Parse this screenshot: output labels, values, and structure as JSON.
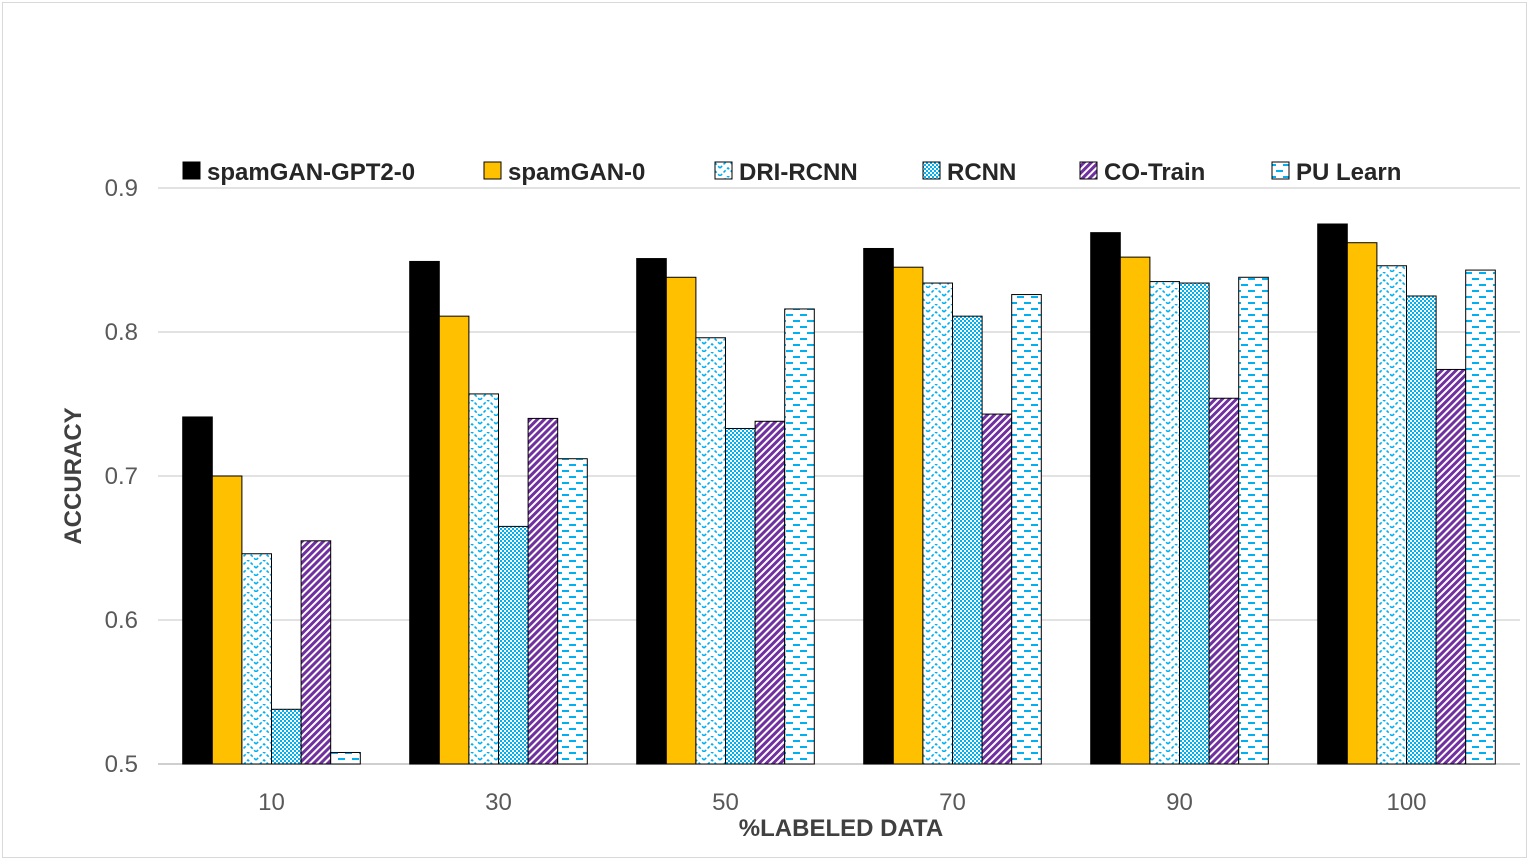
{
  "chart_data": {
    "type": "bar",
    "title": "",
    "xlabel": "%LABELED DATA",
    "ylabel": "ACCURACY",
    "ylim": [
      0.5,
      0.9
    ],
    "yticks": [
      "0.5",
      "0.6",
      "0.7",
      "0.8",
      "0.9"
    ],
    "grid": true,
    "legend_position": "top",
    "categories": [
      "10",
      "30",
      "50",
      "70",
      "90",
      "100"
    ],
    "series": [
      {
        "name": "spamGAN-GPT2-0",
        "values": [
          0.741,
          0.849,
          0.851,
          0.858,
          0.869,
          0.875
        ],
        "color": "#000000",
        "pattern": "solid"
      },
      {
        "name": "spamGAN-0",
        "values": [
          0.7,
          0.811,
          0.838,
          0.845,
          0.852,
          0.862
        ],
        "color": "#ffc000",
        "pattern": "solid"
      },
      {
        "name": "DRI-RCNN",
        "values": [
          0.646,
          0.757,
          0.796,
          0.834,
          0.835,
          0.846
        ],
        "color": "#00b0f0",
        "pattern": "zigzag"
      },
      {
        "name": "RCNN",
        "values": [
          0.538,
          0.665,
          0.733,
          0.811,
          0.834,
          0.825
        ],
        "color": "#00b0f0",
        "pattern": "dense"
      },
      {
        "name": "CO-Train",
        "values": [
          0.655,
          0.74,
          0.738,
          0.743,
          0.754,
          0.774
        ],
        "color": "#7030a0",
        "pattern": "diagonal"
      },
      {
        "name": "PU Learn",
        "values": [
          0.508,
          0.712,
          0.816,
          0.826,
          0.838,
          0.843
        ],
        "color": "#00b0f0",
        "pattern": "dashes"
      }
    ]
  }
}
